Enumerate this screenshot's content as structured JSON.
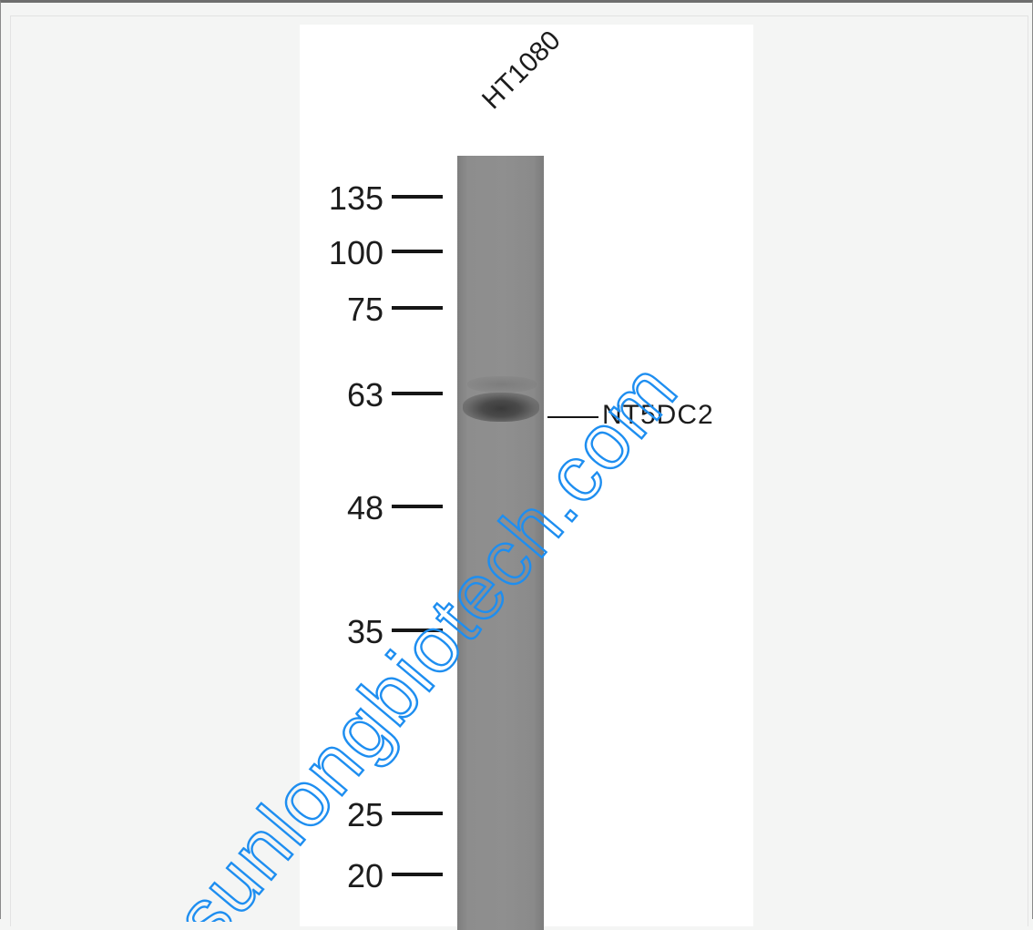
{
  "image": {
    "lane_label": "HT1080",
    "target_label": "NT5DC2",
    "marker_labels": [
      "135",
      "100",
      "75",
      "63",
      "48",
      "35",
      "25",
      "20"
    ],
    "watermark_text": "sunlongbiotech.com",
    "watermark_color": "#1e8ef0",
    "lane_color": "#8d8d8d",
    "band_color": "#3a3a3a"
  }
}
